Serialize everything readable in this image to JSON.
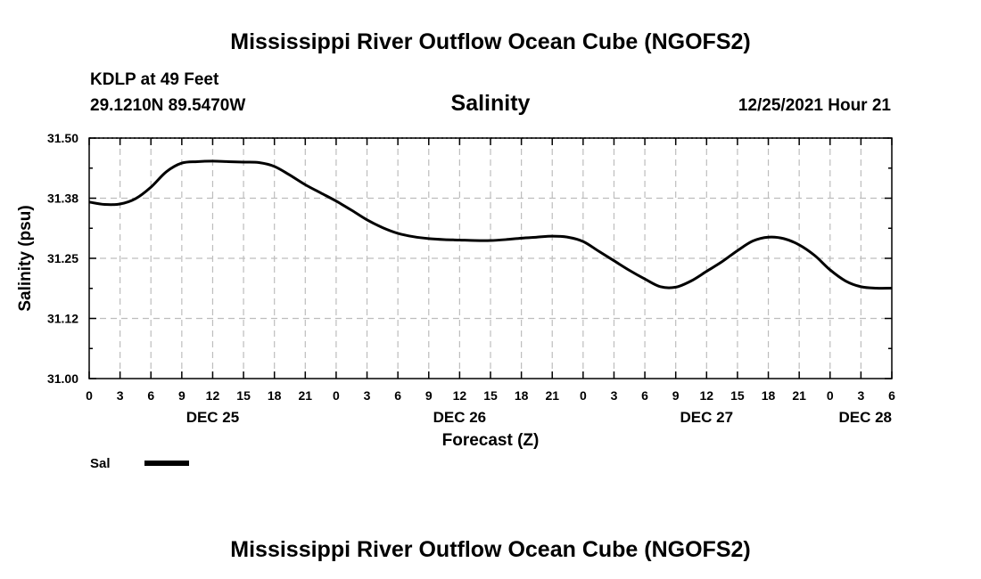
{
  "header": {
    "title": "Mississippi River Outflow Ocean Cube (NGOFS2)",
    "station": "KDLP at 49 Feet",
    "coords": "29.1210N  89.5470W",
    "datetime": "12/25/2021 Hour 21",
    "bottom_title": "Mississippi River Outflow Ocean Cube (NGOFS2)"
  },
  "legend": {
    "label": "Sal"
  },
  "chart_data": {
    "type": "line",
    "title": "Salinity",
    "xlabel": "Forecast (Z)",
    "ylabel": "Salinity (psu)",
    "xlim": [
      0,
      78
    ],
    "ylim": [
      31.0,
      31.5
    ],
    "grid": true,
    "x_tick_values": [
      0,
      3,
      6,
      9,
      12,
      15,
      18,
      21,
      24,
      27,
      30,
      33,
      36,
      39,
      42,
      45,
      48,
      51,
      54,
      57,
      60,
      63,
      66,
      69,
      72,
      75,
      78
    ],
    "x_tick_labels": [
      "0",
      "3",
      "6",
      "9",
      "12",
      "15",
      "18",
      "21",
      "0",
      "3",
      "6",
      "9",
      "12",
      "15",
      "18",
      "21",
      "0",
      "3",
      "6",
      "9",
      "12",
      "15",
      "18",
      "21",
      "0",
      "3",
      "6"
    ],
    "day_labels": [
      {
        "text": "DEC 25",
        "x": 12
      },
      {
        "text": "DEC 26",
        "x": 36
      },
      {
        "text": "DEC 27",
        "x": 60
      },
      {
        "text": "DEC 28",
        "x": 78
      }
    ],
    "y_tick_values": [
      31.0,
      31.125,
      31.25,
      31.375,
      31.5
    ],
    "y_tick_labels": [
      "31.00",
      "31.12",
      "31.25",
      "31.38",
      "31.50"
    ],
    "series": [
      {
        "name": "Sal",
        "x": [
          0,
          1.5,
          3,
          4.5,
          6,
          7.5,
          9,
          10.5,
          12,
          13.5,
          15,
          16.5,
          18,
          19.5,
          21,
          22.5,
          24,
          25.5,
          27,
          28.5,
          30,
          31.5,
          33,
          34.5,
          36,
          37.5,
          39,
          40.5,
          42,
          43.5,
          45,
          46.5,
          48,
          49.5,
          51,
          52.5,
          54,
          55.5,
          57,
          58.5,
          60,
          61.5,
          63,
          64.5,
          66,
          67.5,
          69,
          70.5,
          72,
          73.5,
          75,
          76.5,
          78
        ],
        "values": [
          31.367,
          31.362,
          31.363,
          31.374,
          31.398,
          31.43,
          31.448,
          31.451,
          31.452,
          31.451,
          31.45,
          31.449,
          31.441,
          31.423,
          31.403,
          31.386,
          31.369,
          31.35,
          31.33,
          31.314,
          31.302,
          31.295,
          31.291,
          31.289,
          31.288,
          31.287,
          31.287,
          31.289,
          31.292,
          31.294,
          31.296,
          31.294,
          31.285,
          31.265,
          31.245,
          31.225,
          31.207,
          31.191,
          31.19,
          31.203,
          31.223,
          31.243,
          31.266,
          31.286,
          31.294,
          31.291,
          31.278,
          31.256,
          31.226,
          31.203,
          31.191,
          31.188,
          31.188
        ]
      }
    ]
  }
}
